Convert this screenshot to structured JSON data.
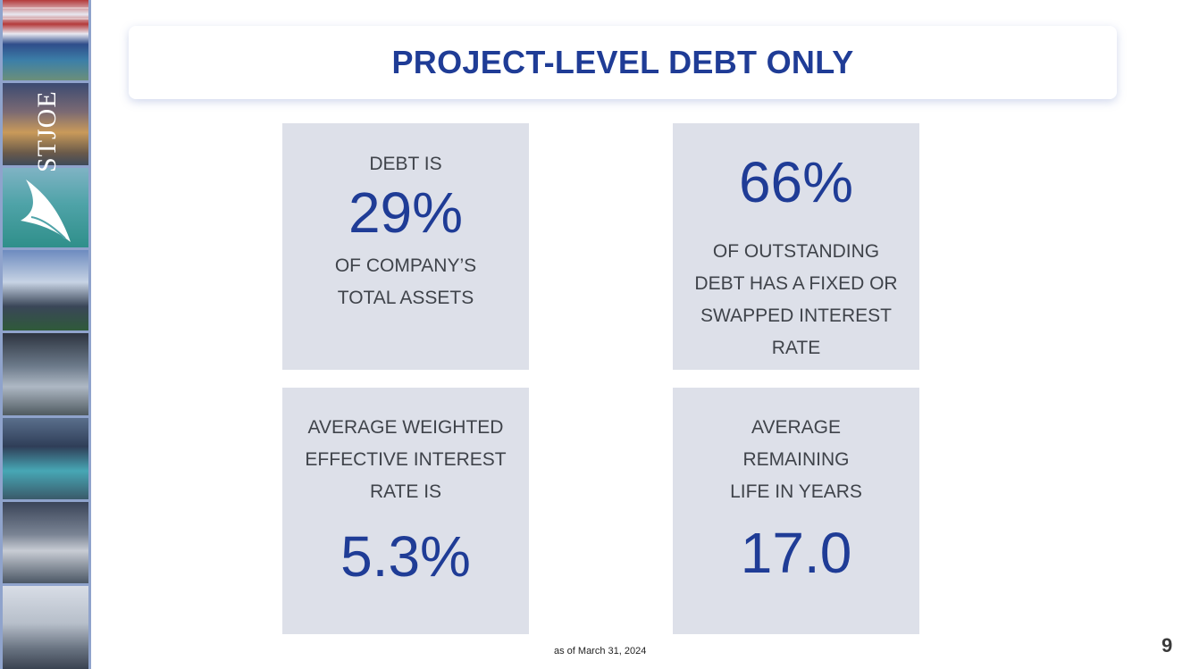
{
  "header": {
    "title": "PROJECT-LEVEL DEBT ONLY"
  },
  "logo": {
    "text": "STJOE"
  },
  "cards": [
    {
      "label_top": "DEBT IS",
      "value": "29%",
      "label_lines": [
        "OF COMPANY’S",
        "TOTAL ASSETS"
      ]
    },
    {
      "value": "66%",
      "label_lines": [
        "OF OUTSTANDING",
        "DEBT HAS A FIXED OR",
        "SWAPPED INTEREST",
        "RATE"
      ]
    },
    {
      "label_lines": [
        "AVERAGE WEIGHTED",
        "EFFECTIVE INTEREST",
        "RATE IS"
      ],
      "value": "5.3%"
    },
    {
      "label_lines": [
        "AVERAGE",
        "REMAINING",
        "LIFE IN YEARS"
      ],
      "value": "17.0"
    }
  ],
  "footnote": "as of March 31, 2024",
  "page_number": "9",
  "colors": {
    "accent": "#1f3c96",
    "card_bg": "#dde0e9",
    "strip": "#8fa3cc"
  }
}
